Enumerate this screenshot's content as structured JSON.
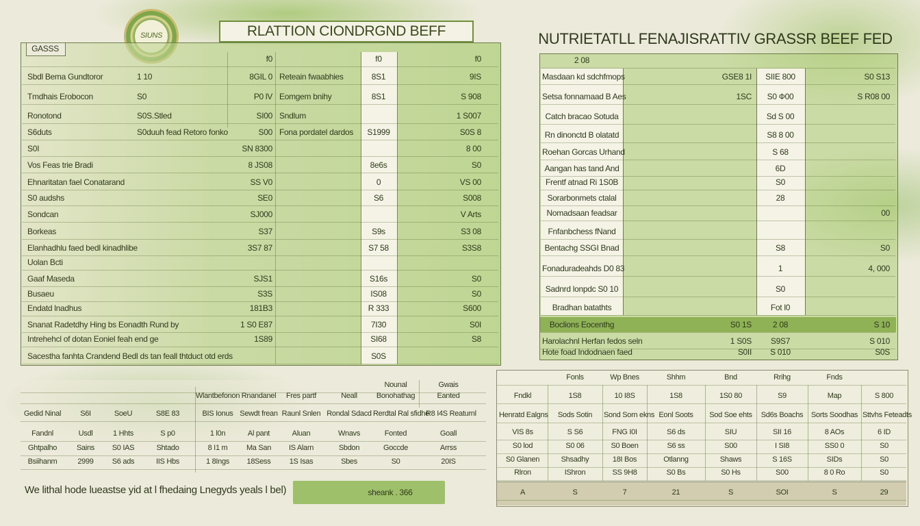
{
  "logo": "SIUNS",
  "header": {
    "title": "RLATTION CIONDRGND BEFF",
    "right_title": "NUTRIETATLL FENAJISRATTIV GRASSR BEEF FED"
  },
  "left_table": {
    "tag": "GASSS",
    "rows": [
      [
        null,
        null,
        "f0",
        null,
        "f0",
        "f0"
      ],
      [
        "Sbdl Bema Gundtoror",
        "1 10",
        "8GIL 0",
        "Reteain fwaabhies",
        "8S1",
        "9IS"
      ],
      [
        "Tmdhais Erobocon",
        "S0",
        "P0 lV",
        "Eomgem bnihy",
        "8S1",
        "S 908"
      ],
      [
        "Ronotond",
        "S0S.Stled",
        "SI00",
        "Sndlum",
        null,
        "1 S007"
      ],
      [
        "S6duts",
        "S0duuh fead Retoro fonko",
        "S00",
        "Fona pordatel dardos",
        "S1999",
        "S0S 8"
      ],
      [
        "S0I",
        null,
        "SN 8300",
        null,
        null,
        "8 00"
      ],
      [
        "Vos Feas trie Bradi",
        null,
        "8 JS08",
        null,
        "8e6s",
        "S0"
      ],
      [
        "Ehnaritatan fael Conatarand",
        null,
        "SS V0",
        null,
        "0",
        "VS 00"
      ],
      [
        "S0 audshs",
        null,
        "SE0",
        null,
        "S6",
        "S008"
      ],
      [
        "Sondcan",
        null,
        "SJ000",
        null,
        null,
        "V Arts"
      ],
      [
        "Borkeas",
        null,
        "S37",
        null,
        "S9s",
        "S3 08"
      ],
      [
        "Elanhadhlu faed bedl kinadhlibe",
        null,
        "3S7 87",
        null,
        "S7 58",
        "S3S8"
      ],
      [
        "Uolan Bcti",
        null,
        null,
        null,
        null,
        null
      ],
      [
        "Gaaf Maseda",
        null,
        "SJS1",
        null,
        "S16s",
        "S0"
      ],
      [
        "Busaeu",
        null,
        "S3S",
        null,
        "IS08",
        "S0"
      ],
      [
        "Endatd lnadhus",
        null,
        "181B3",
        null,
        "R 333",
        "S600"
      ],
      [
        "Snanat Radetdhy Hing bs Eonadth Rund by",
        null,
        "1 S0 E87",
        null,
        "7I30",
        "S0I"
      ],
      [
        "Intrehehcl of dotan Eoniel feah end ge",
        null,
        "1S89",
        null,
        "SI68",
        "S8"
      ],
      [
        "Sacestha fanhta Crandend Bedl ds tan feall thtduct otd erds",
        null,
        null,
        null,
        "S0S",
        null
      ]
    ]
  },
  "right_table": {
    "rows": [
      [
        "2 08",
        null,
        null,
        null
      ],
      [
        "Masdaan kd sdchfmops",
        "GSE8 1I",
        "SIIE 800",
        "S0 S13"
      ],
      [
        "Setsa fonnamaad B Aes",
        "1SC",
        "S0 Ф00",
        "S R08 00"
      ],
      [
        "Catch bracao Sotuda",
        null,
        "Sd S 00",
        null
      ],
      [
        "Rn dinonctd B olatatd",
        null,
        "S8 8 00",
        null
      ],
      [
        "Roehan Gorcas Urhand",
        null,
        "S 68",
        null
      ],
      [
        "Aangan has tand And",
        null,
        "6D",
        null
      ],
      [
        "Frentf atnad Ri 1S0B",
        null,
        "S0",
        null
      ],
      [
        "Sorarbonmets ctalal",
        null,
        "28",
        null
      ],
      [
        "Nomadsaan feadsar",
        null,
        null,
        "00"
      ],
      [
        "Fnfanbchess fNand",
        null,
        null,
        null
      ],
      [
        "Bentachg SSGI Bnad",
        null,
        "S8",
        "S0"
      ],
      [
        "Fonaduradeahds D0 83",
        null,
        "1",
        "4, 000"
      ],
      [
        "Sadnrd lonpdc S0 10",
        null,
        "S0",
        null
      ],
      [
        "Bradhan batathts",
        null,
        "Fot l0",
        null
      ],
      [
        "Boclions Eocenthg",
        "S0 1S",
        "2 08",
        "S 10"
      ],
      [
        "Harolachnl Herfan fedos seln",
        "1 S0S",
        "S9S7",
        "S 010"
      ],
      [
        "Hote foad Indodnaen faed",
        "S0II",
        "S 010",
        "S0S"
      ]
    ]
  },
  "bottom_left_table": {
    "rows": [
      [
        null,
        null,
        null,
        null,
        null,
        null,
        null,
        null,
        "Nounal",
        "Gwais"
      ],
      [
        null,
        null,
        null,
        null,
        "Wlantbefonon",
        "Rnandanel",
        "Fres partf",
        "Neall",
        "Bonohathag",
        "Eanted"
      ],
      [
        "Gedid Ninal",
        "S6I",
        "SoeU",
        "S8E 83",
        "BIS Ionus",
        "Sewdt frean",
        "Raunl Snlen",
        "Rondal Sdacd",
        "Rerdtal Ral sfidhe",
        "R8 I4S Reaturnl"
      ],
      [
        "Fandnl",
        "Usdl",
        "1 Hhts",
        "S p0",
        "1 l0n",
        "Al pant",
        "Aluan",
        "Wnavs",
        "Fonted",
        "Goall"
      ],
      [
        "Ghtpalho",
        "Sains",
        "S0 IAS",
        "Shtado",
        "8 I1 m",
        "Ma San",
        "IS Alarn",
        "Sbdon",
        "Goccde",
        "Arrss"
      ],
      [
        "Bsiihanm",
        "2999",
        "S6 ads",
        "IIS Hbs",
        "1 8Ings",
        "18Sess",
        "1S Isas",
        "Sbes",
        "S0",
        "20IS"
      ]
    ]
  },
  "bottom_right_table": {
    "rows": [
      [
        null,
        "Fonls",
        "Wp Bnes",
        "Shhm",
        "Bnd",
        "Rrihg",
        "Fnds",
        null
      ],
      [
        "Fndkl",
        "1S8",
        "10 I8S",
        "1S8",
        "1S0 80",
        "S9",
        "Map",
        "S 800"
      ],
      [
        "Henratd Ealgns",
        "Sods Sotin",
        "Sond Sorn ekns",
        "Eonl Soots",
        "Sod Soe ehts",
        "Sd6s Boachs",
        "Sorts Soodhas",
        "Sttvhs Feteadts"
      ],
      [
        "VIS 8s",
        "S S6",
        "FNG I0I",
        "S6 ds",
        "SIU",
        "SII 16",
        "8 AOs",
        "6 ID"
      ],
      [
        "S0 lod",
        "S0 06",
        "S0 Boen",
        "S6 ss",
        "S00",
        "I SI8",
        "SS0 0",
        "S0"
      ],
      [
        "S0 Glanen",
        "Shsadhy",
        "18I Bos",
        "Otlanng",
        "Shaws",
        "S 16S",
        "SIDs",
        "S0"
      ],
      [
        "Rlron",
        "IShron",
        "SS 9H8",
        "S0 Bs",
        "S0 Hs",
        "S00",
        "8 0 Ro",
        "S0"
      ],
      [
        "A",
        "S",
        "7",
        "21",
        "S",
        "SOI",
        "S",
        "29"
      ]
    ]
  },
  "footer": {
    "text": "We lithal hode lueastse yid at l fhedaing Lnegyds yeals l bel)",
    "badge": "sheank . 366"
  }
}
